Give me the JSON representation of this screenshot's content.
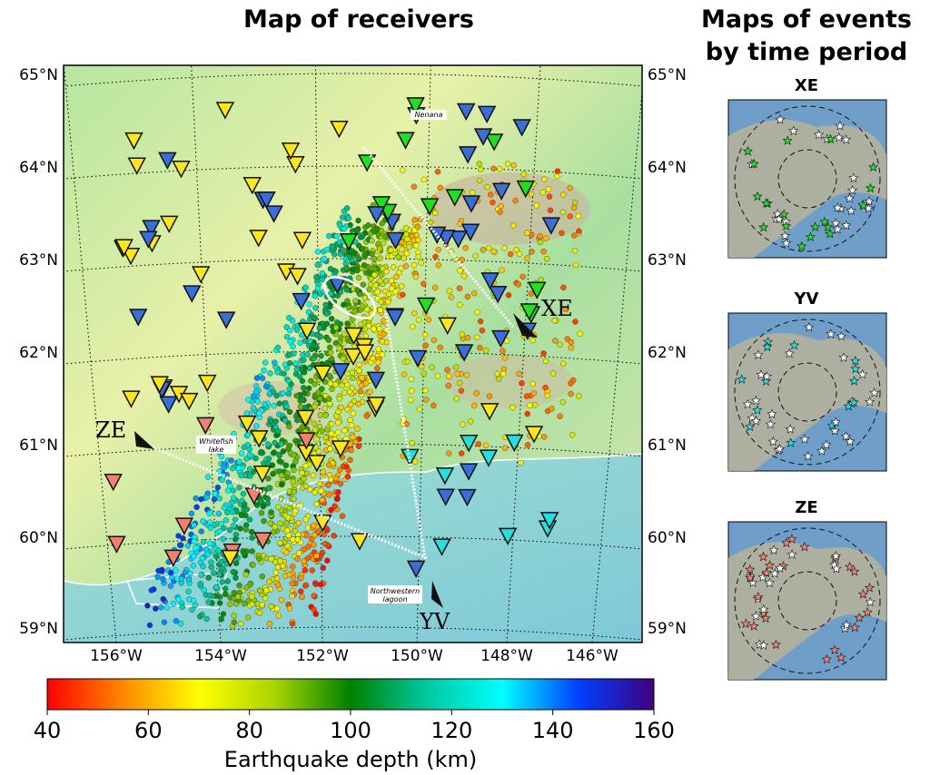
{
  "title": "Map of receivers",
  "side_title": [
    "Maps of events",
    "by time period"
  ],
  "map": {
    "lat_labels": [
      "65°N",
      "64°N",
      "63°N",
      "62°N",
      "61°N",
      "60°N",
      "59°N"
    ],
    "lon_labels": [
      "156°W",
      "154°W",
      "152°W",
      "150°W",
      "148°W",
      "146°W"
    ],
    "annotations": {
      "xe": "XE",
      "ze": "ZE",
      "yv": "YV",
      "nenana": "Nenana",
      "whitefish": [
        "Whitefish",
        "lake"
      ],
      "lagoon": [
        "Northwestern",
        "lagoon"
      ]
    }
  },
  "colorbar": {
    "label": "Earthquake depth (km)",
    "lim": [
      40,
      160
    ],
    "ticks": [
      40,
      60,
      80,
      100,
      120,
      140,
      160
    ],
    "colors": [
      "#ff0000",
      "#ff8800",
      "#ffff00",
      "#a8d400",
      "#008000",
      "#00c8a0",
      "#00ffff",
      "#0040ff",
      "#400080"
    ]
  },
  "insets": [
    {
      "title": "XE",
      "color": "#22dd22"
    },
    {
      "title": "YV",
      "color": "#22e0e0"
    },
    {
      "title": "ZE",
      "color": "#f08070"
    }
  ]
}
